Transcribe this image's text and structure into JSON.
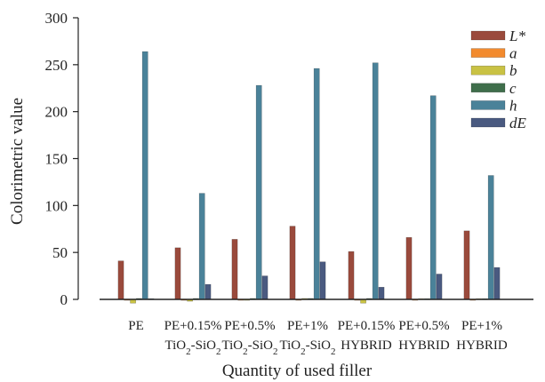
{
  "chart_data": {
    "type": "bar",
    "categories": [
      {
        "line1": "PE",
        "line2_main": "",
        "line2_sub": "",
        "line2_tail": ""
      },
      {
        "line1": "PE+0.15%",
        "line2_main": "TiO",
        "line2_sub": "2",
        "line2_tail": "-SiO",
        "line2_sub2": "2"
      },
      {
        "line1": "PE+0.5%",
        "line2_main": "TiO",
        "line2_sub": "2",
        "line2_tail": "-SiO",
        "line2_sub2": "2"
      },
      {
        "line1": "PE+1%",
        "line2_main": "TiO",
        "line2_sub": "2",
        "line2_tail": "-SiO",
        "line2_sub2": "2"
      },
      {
        "line1": "PE+0.15%",
        "line2_main": "HYBRID",
        "line2_sub": "",
        "line2_tail": "",
        "line2_sub2": ""
      },
      {
        "line1": "PE+0.5%",
        "line2_main": "HYBRID",
        "line2_sub": "",
        "line2_tail": "",
        "line2_sub2": ""
      },
      {
        "line1": "PE+1%",
        "line2_main": "HYBRID",
        "line2_sub": "",
        "line2_tail": "",
        "line2_sub2": ""
      }
    ],
    "series": [
      {
        "name": "L*",
        "color": "#9a4a3c",
        "values": [
          41,
          55,
          64,
          78,
          51,
          66,
          73
        ]
      },
      {
        "name": "a",
        "color": "#f28a2e",
        "values": [
          -1,
          -1,
          -1,
          -1,
          -1,
          -1,
          -1
        ]
      },
      {
        "name": "b",
        "color": "#c9c244",
        "values": [
          -4,
          -2,
          -1,
          1,
          -4,
          0,
          0
        ]
      },
      {
        "name": "c",
        "color": "#3f6e4b",
        "values": [
          1,
          1,
          1,
          1,
          1,
          0,
          0
        ]
      },
      {
        "name": "h",
        "color": "#4a8299",
        "values": [
          264,
          113,
          228,
          246,
          252,
          217,
          132
        ]
      },
      {
        "name": "dE",
        "color": "#4a5a80",
        "values": [
          0,
          16,
          25,
          40,
          13,
          27,
          34
        ]
      }
    ],
    "ylim": [
      0,
      300
    ],
    "yticks": [
      0,
      50,
      100,
      150,
      200,
      250,
      300
    ],
    "xlabel": "Quantity of used filler",
    "ylabel": "Colorimetric value",
    "legend_position": "top-right",
    "grid": false
  }
}
